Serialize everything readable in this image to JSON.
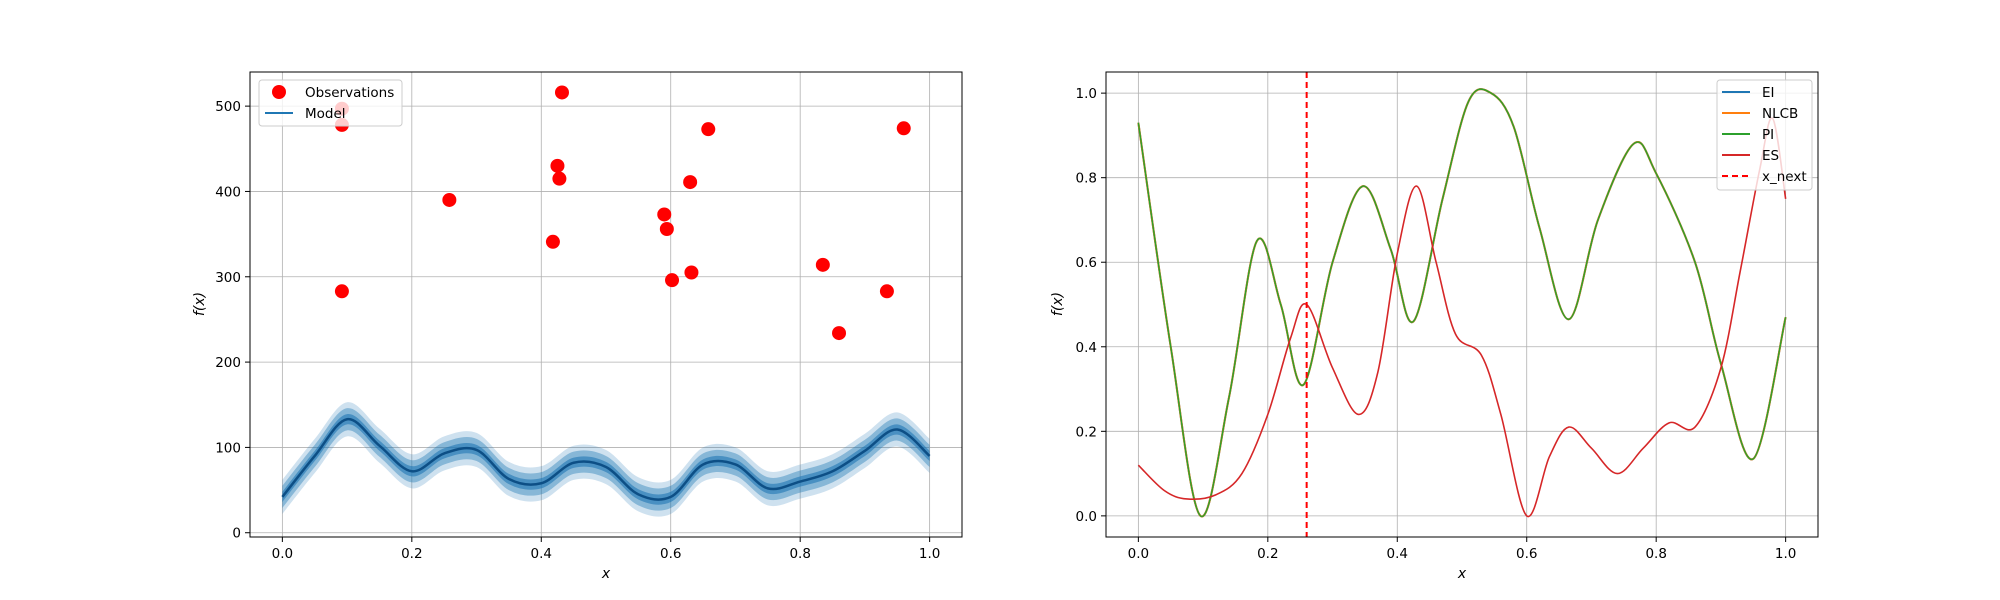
{
  "chart_data": [
    {
      "type": "scatter",
      "xlabel": "x",
      "ylabel": "f(x)",
      "xlim": [
        -0.05,
        1.05
      ],
      "ylim": [
        -5,
        540
      ],
      "xticks": [
        "0.0",
        "0.2",
        "0.4",
        "0.6",
        "0.8",
        "1.0"
      ],
      "yticks": [
        "0",
        "100",
        "200",
        "300",
        "400",
        "500"
      ],
      "grid": true,
      "legend_position": "top-left",
      "series": [
        {
          "name": "Observations",
          "kind": "points",
          "color": "#ff0000",
          "x": [
            0.092,
            0.092,
            0.092,
            0.258,
            0.418,
            0.425,
            0.428,
            0.432,
            0.59,
            0.594,
            0.602,
            0.63,
            0.632,
            0.658,
            0.835,
            0.86,
            0.934,
            0.96
          ],
          "y": [
            497,
            478,
            283,
            390,
            341,
            430,
            415,
            516,
            373,
            356,
            296,
            411,
            305,
            473,
            314,
            234,
            283,
            474
          ]
        },
        {
          "name": "Model",
          "kind": "line_with_bands",
          "color": "#1f77b4",
          "x": [
            0.0,
            0.05,
            0.1,
            0.15,
            0.2,
            0.25,
            0.3,
            0.35,
            0.4,
            0.45,
            0.5,
            0.55,
            0.6,
            0.65,
            0.7,
            0.75,
            0.8,
            0.85,
            0.9,
            0.95,
            1.0
          ],
          "y": [
            42,
            90,
            133,
            102,
            72,
            93,
            97,
            63,
            58,
            82,
            77,
            45,
            42,
            80,
            80,
            52,
            60,
            72,
            96,
            121,
            90
          ],
          "band_halfwidths": [
            6,
            13,
            20
          ]
        }
      ]
    },
    {
      "type": "line",
      "xlabel": "x",
      "ylabel": "f(x)",
      "xlim": [
        -0.05,
        1.05
      ],
      "ylim": [
        -0.05,
        1.05
      ],
      "xticks": [
        "0.0",
        "0.2",
        "0.4",
        "0.6",
        "0.8",
        "1.0"
      ],
      "yticks": [
        "0.0",
        "0.2",
        "0.4",
        "0.6",
        "0.8",
        "1.0"
      ],
      "grid": true,
      "legend_position": "top-right",
      "series": [
        {
          "name": "EI",
          "color": "#1f77b4",
          "x": [
            0.0,
            0.05,
            0.096,
            0.14,
            0.183,
            0.22,
            0.255,
            0.3,
            0.347,
            0.39,
            0.425,
            0.47,
            0.51,
            0.545,
            0.58,
            0.62,
            0.665,
            0.71,
            0.765,
            0.8,
            0.86,
            0.9,
            0.95,
            1.0
          ],
          "y": [
            0.93,
            0.4,
            0.0,
            0.28,
            0.65,
            0.5,
            0.31,
            0.6,
            0.78,
            0.63,
            0.46,
            0.75,
            0.98,
            1.0,
            0.92,
            0.68,
            0.465,
            0.7,
            0.88,
            0.81,
            0.6,
            0.36,
            0.135,
            0.47
          ]
        },
        {
          "name": "NLCB",
          "color": "#ff7f0e",
          "x": [
            0.0,
            0.05,
            0.096,
            0.14,
            0.183,
            0.22,
            0.255,
            0.3,
            0.347,
            0.39,
            0.425,
            0.47,
            0.51,
            0.545,
            0.58,
            0.62,
            0.665,
            0.71,
            0.765,
            0.8,
            0.86,
            0.9,
            0.95,
            1.0
          ],
          "y": [
            0.93,
            0.4,
            0.0,
            0.28,
            0.65,
            0.5,
            0.31,
            0.6,
            0.78,
            0.63,
            0.46,
            0.75,
            0.98,
            1.0,
            0.92,
            0.68,
            0.465,
            0.7,
            0.88,
            0.81,
            0.6,
            0.36,
            0.135,
            0.47
          ]
        },
        {
          "name": "PI",
          "color": "#2ca02c",
          "x": [
            0.0,
            0.05,
            0.096,
            0.14,
            0.183,
            0.22,
            0.255,
            0.3,
            0.347,
            0.39,
            0.425,
            0.47,
            0.51,
            0.545,
            0.58,
            0.62,
            0.665,
            0.71,
            0.765,
            0.8,
            0.86,
            0.9,
            0.95,
            1.0
          ],
          "y": [
            0.93,
            0.4,
            0.0,
            0.28,
            0.65,
            0.5,
            0.31,
            0.6,
            0.78,
            0.63,
            0.46,
            0.75,
            0.98,
            1.0,
            0.92,
            0.68,
            0.465,
            0.7,
            0.88,
            0.81,
            0.6,
            0.36,
            0.135,
            0.47
          ]
        },
        {
          "name": "ES",
          "color": "#d62728",
          "x": [
            0.0,
            0.04,
            0.075,
            0.12,
            0.16,
            0.2,
            0.235,
            0.26,
            0.3,
            0.34,
            0.37,
            0.4,
            0.43,
            0.46,
            0.49,
            0.53,
            0.56,
            0.6,
            0.635,
            0.665,
            0.7,
            0.74,
            0.78,
            0.82,
            0.86,
            0.9,
            0.93,
            0.96,
            0.98,
            1.0
          ],
          "y": [
            0.12,
            0.06,
            0.04,
            0.05,
            0.1,
            0.24,
            0.42,
            0.5,
            0.35,
            0.24,
            0.34,
            0.62,
            0.78,
            0.6,
            0.43,
            0.38,
            0.24,
            0.0,
            0.14,
            0.21,
            0.16,
            0.1,
            0.16,
            0.22,
            0.21,
            0.35,
            0.58,
            0.82,
            0.94,
            0.75
          ]
        }
      ],
      "vline": {
        "name": "x_next",
        "x": 0.26,
        "color": "#ff0000",
        "style": "dashed"
      }
    }
  ]
}
